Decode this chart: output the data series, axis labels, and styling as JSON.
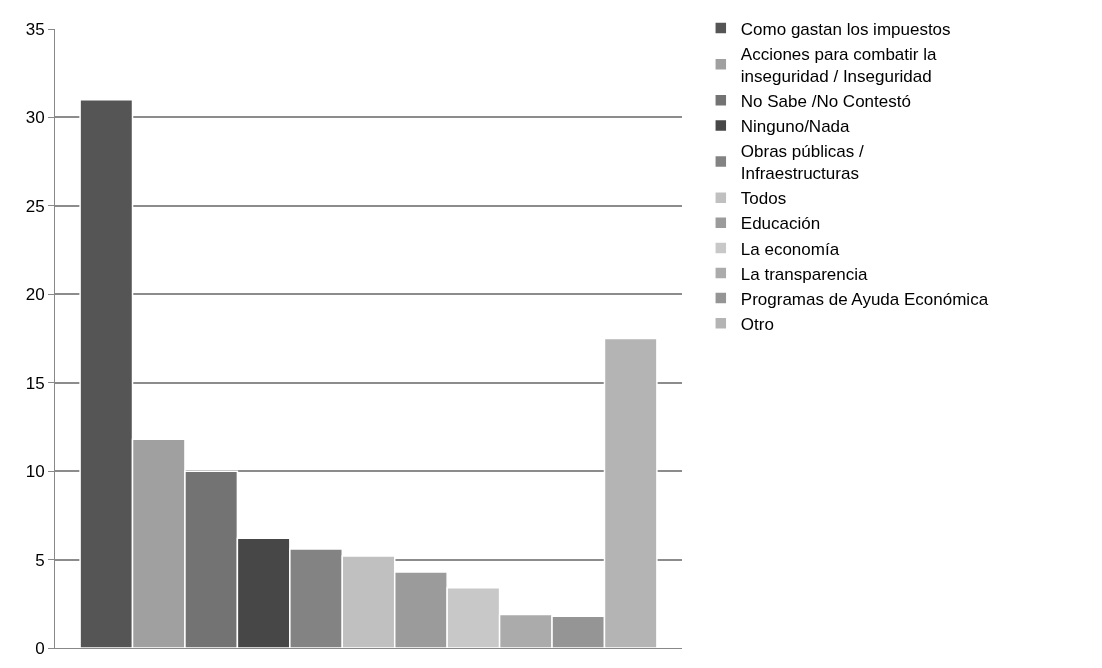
{
  "chart_data": {
    "type": "bar",
    "categories": [
      null
    ],
    "ylim": [
      0,
      35
    ],
    "yticks": [
      0,
      5,
      10,
      15,
      20,
      25,
      30,
      35
    ],
    "grid": "y",
    "legend": "right",
    "series": [
      {
        "name": "Como gastan los impuestos",
        "color": "#555555",
        "values": [
          31.0
        ]
      },
      {
        "name": "Acciones para combatir la inseguridad / Inseguridad",
        "color": "#a0a0a0",
        "values": [
          11.8
        ]
      },
      {
        "name": "No Sabe /No Contestó",
        "color": "#737373",
        "values": [
          10.0
        ]
      },
      {
        "name": "Ninguno/Nada",
        "color": "#474747",
        "values": [
          6.2
        ]
      },
      {
        "name": "Obras públicas / Infraestructuras",
        "color": "#838383",
        "values": [
          5.6
        ]
      },
      {
        "name": "Todos",
        "color": "#c0c0c0",
        "values": [
          5.2
        ]
      },
      {
        "name": "Educación",
        "color": "#9b9b9b",
        "values": [
          4.3
        ]
      },
      {
        "name": "La economía",
        "color": "#c8c8c8",
        "values": [
          3.4
        ]
      },
      {
        "name": "La transparencia",
        "color": "#ababab",
        "values": [
          1.9
        ]
      },
      {
        "name": "Programas de Ayuda Económica",
        "color": "#959595",
        "values": [
          1.8
        ]
      },
      {
        "name": "Otro",
        "color": "#b4b4b4",
        "values": [
          17.5
        ]
      }
    ]
  }
}
